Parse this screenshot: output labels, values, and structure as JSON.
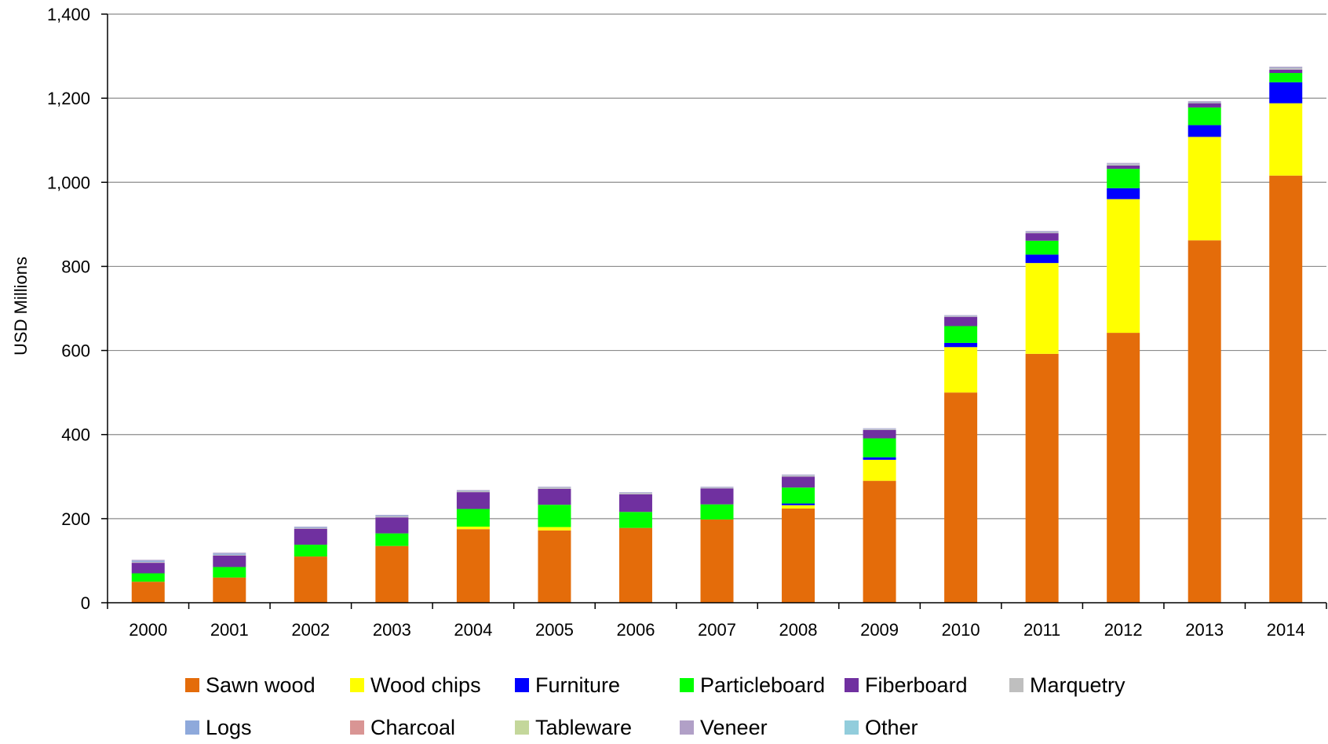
{
  "chart_data": {
    "type": "bar",
    "stacked": true,
    "title": "",
    "xlabel": "",
    "ylabel": "USD Millions",
    "ylim": [
      0,
      1400
    ],
    "yticks": [
      0,
      200,
      400,
      600,
      800,
      1000,
      1200,
      1400
    ],
    "ytick_labels": [
      "0",
      "200",
      "400",
      "600",
      "800",
      "1,000",
      "1,200",
      "1,400"
    ],
    "grid": true,
    "legend_position": "bottom",
    "categories": [
      "2000",
      "2001",
      "2002",
      "2003",
      "2004",
      "2005",
      "2006",
      "2007",
      "2008",
      "2009",
      "2010",
      "2011",
      "2012",
      "2013",
      "2014"
    ],
    "series": [
      {
        "name": "Sawn wood",
        "color": "#E46C0A",
        "values": [
          50,
          60,
          110,
          135,
          175,
          172,
          178,
          198,
          224,
          290,
          500,
          592,
          642,
          862,
          1016
        ]
      },
      {
        "name": "Wood chips",
        "color": "#FFFF00",
        "values": [
          0,
          0,
          0,
          0,
          6,
          8,
          0,
          0,
          8,
          50,
          108,
          216,
          318,
          246,
          172
        ]
      },
      {
        "name": "Furniture",
        "color": "#0000FF",
        "values": [
          0,
          0,
          0,
          0,
          0,
          0,
          0,
          0,
          4,
          6,
          10,
          20,
          26,
          28,
          50
        ]
      },
      {
        "name": "Particleboard",
        "color": "#00FF00",
        "values": [
          20,
          25,
          28,
          30,
          42,
          53,
          38,
          36,
          38,
          45,
          40,
          33,
          46,
          42,
          22
        ]
      },
      {
        "name": "Fiberboard",
        "color": "#7030A0",
        "values": [
          25,
          27,
          38,
          38,
          40,
          38,
          42,
          38,
          26,
          20,
          22,
          18,
          8,
          10,
          8
        ]
      },
      {
        "name": "Marquetry",
        "color": "#BFBFBF",
        "values": [
          2,
          2,
          2,
          3,
          3,
          3,
          3,
          2,
          3,
          2,
          2,
          2,
          3,
          2,
          4
        ]
      },
      {
        "name": "Logs",
        "color": "#8EA9DB",
        "values": [
          3,
          3,
          2,
          2,
          1,
          1,
          1,
          1,
          1,
          1,
          1,
          1,
          1,
          1,
          1
        ]
      },
      {
        "name": "Charcoal",
        "color": "#D99594",
        "values": [
          0,
          0,
          0,
          0,
          0,
          0,
          0,
          0,
          0,
          0,
          0,
          0,
          0,
          0,
          0
        ]
      },
      {
        "name": "Tableware",
        "color": "#C4D79B",
        "values": [
          0,
          0,
          0,
          0,
          0,
          0,
          0,
          0,
          0,
          0,
          0,
          0,
          0,
          0,
          0
        ]
      },
      {
        "name": "Veneer",
        "color": "#B1A0C7",
        "values": [
          2,
          2,
          1,
          1,
          1,
          1,
          1,
          1,
          1,
          1,
          1,
          2,
          2,
          2,
          2
        ]
      },
      {
        "name": "Other",
        "color": "#92CDDC",
        "values": [
          0,
          0,
          0,
          0,
          0,
          0,
          0,
          0,
          0,
          0,
          0,
          0,
          0,
          0,
          0
        ]
      }
    ]
  }
}
